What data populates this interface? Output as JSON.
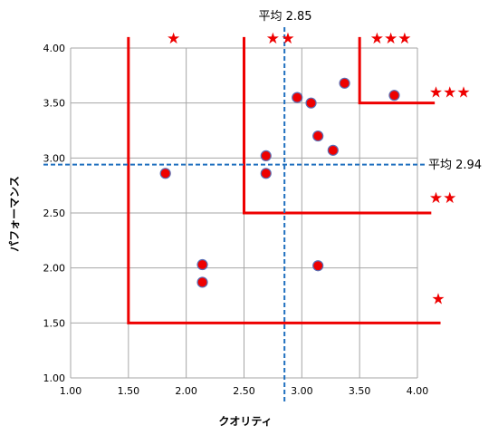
{
  "chart_data": {
    "type": "scatter",
    "xlabel": "クオリティ",
    "ylabel": "パフォーマンス",
    "xlim": [
      1.0,
      4.0
    ],
    "ylim": [
      1.0,
      4.0
    ],
    "xticks": [
      "1.00",
      "1.50",
      "2.00",
      "2.50",
      "3.00",
      "3.50",
      "4.00"
    ],
    "yticks": [
      "1.00",
      "1.50",
      "2.00",
      "2.50",
      "3.00",
      "3.50",
      "4.00"
    ],
    "grid": true,
    "colors": {
      "point_fill": "#ee0000",
      "point_stroke": "#5b6fb5",
      "threshold_line": "#ee0000",
      "average_line": "#1f6fbf",
      "grid": "#a6a6a6",
      "star": "#ee0000"
    },
    "points": [
      {
        "x": 1.82,
        "y": 2.86
      },
      {
        "x": 2.14,
        "y": 2.03
      },
      {
        "x": 2.14,
        "y": 1.87
      },
      {
        "x": 2.69,
        "y": 3.02
      },
      {
        "x": 2.69,
        "y": 2.86
      },
      {
        "x": 2.96,
        "y": 3.55
      },
      {
        "x": 3.08,
        "y": 3.5
      },
      {
        "x": 3.14,
        "y": 3.2
      },
      {
        "x": 3.27,
        "y": 3.07
      },
      {
        "x": 3.37,
        "y": 3.68
      },
      {
        "x": 3.14,
        "y": 2.02
      },
      {
        "x": 3.8,
        "y": 3.57
      }
    ],
    "averages": {
      "x": {
        "value": 2.85,
        "label": "平均 2.85"
      },
      "y": {
        "value": 2.94,
        "label": "平均 2.94"
      }
    },
    "thresholds": [
      {
        "x": 1.5,
        "y": 1.5,
        "x_end": 4.2,
        "y_top": 4.1
      },
      {
        "x": 2.5,
        "y": 2.5,
        "x_end": 4.12,
        "y_top": 4.1
      },
      {
        "x": 3.5,
        "y": 3.5,
        "x_end": 4.15,
        "y_top": 4.1
      }
    ],
    "stars": [
      {
        "text": "★",
        "x": 1.89,
        "y": 4.09
      },
      {
        "text": "★",
        "x": 2.75,
        "y": 4.09
      },
      {
        "text": "★",
        "x": 2.88,
        "y": 4.09
      },
      {
        "text": "★★★",
        "x": 3.77,
        "y": 4.09
      },
      {
        "text": "★★★",
        "x": 4.28,
        "y": 3.6
      },
      {
        "text": "★★",
        "x": 4.22,
        "y": 2.64
      },
      {
        "text": "★",
        "x": 4.18,
        "y": 1.72
      }
    ]
  }
}
